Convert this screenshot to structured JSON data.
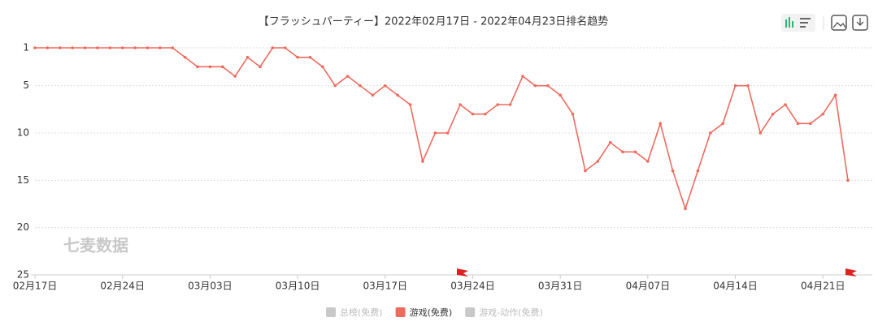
{
  "chart_data": {
    "type": "line",
    "title": "【フラッシュパーティー】2022年02月17日 - 2022年04月23日排名趋势",
    "watermark": "七麦数据",
    "categories": [
      "02月17日",
      null,
      null,
      null,
      null,
      null,
      null,
      "02月24日",
      null,
      null,
      null,
      null,
      null,
      null,
      "03月03日",
      null,
      null,
      null,
      null,
      null,
      null,
      "03月10日",
      null,
      null,
      null,
      null,
      null,
      null,
      "03月17日",
      null,
      null,
      null,
      null,
      null,
      null,
      "03月24日",
      null,
      null,
      null,
      null,
      null,
      null,
      "03月31日",
      null,
      null,
      null,
      null,
      null,
      null,
      "04月07日",
      null,
      null,
      null,
      null,
      null,
      null,
      "04月14日",
      null,
      null,
      null,
      null,
      null,
      null,
      "04月21日",
      null,
      null
    ],
    "series": [
      {
        "name": "游戏(免费)",
        "color": "#ee6b5f",
        "values": [
          1,
          1,
          1,
          1,
          1,
          1,
          1,
          1,
          1,
          1,
          1,
          1,
          2,
          3,
          3,
          3,
          4,
          2,
          3,
          1,
          1,
          2,
          2,
          3,
          5,
          4,
          5,
          6,
          5,
          6,
          7,
          13,
          10,
          10,
          7,
          8,
          8,
          7,
          7,
          4,
          5,
          5,
          6,
          8,
          14,
          13,
          11,
          12,
          12,
          13,
          9,
          14,
          18,
          14,
          10,
          9,
          5,
          5,
          10,
          8,
          7,
          9,
          9,
          8,
          6,
          15
        ]
      }
    ],
    "inactive_legend": [
      {
        "name": "总榜(免费)",
        "color": "#c8c8c8"
      },
      {
        "name": "游戏-动作(免费)",
        "color": "#c8c8c8"
      }
    ],
    "ylim": [
      1,
      25
    ],
    "y_inverted": true,
    "yticks": [
      1,
      5,
      10,
      15,
      20,
      25
    ],
    "grid": true
  }
}
